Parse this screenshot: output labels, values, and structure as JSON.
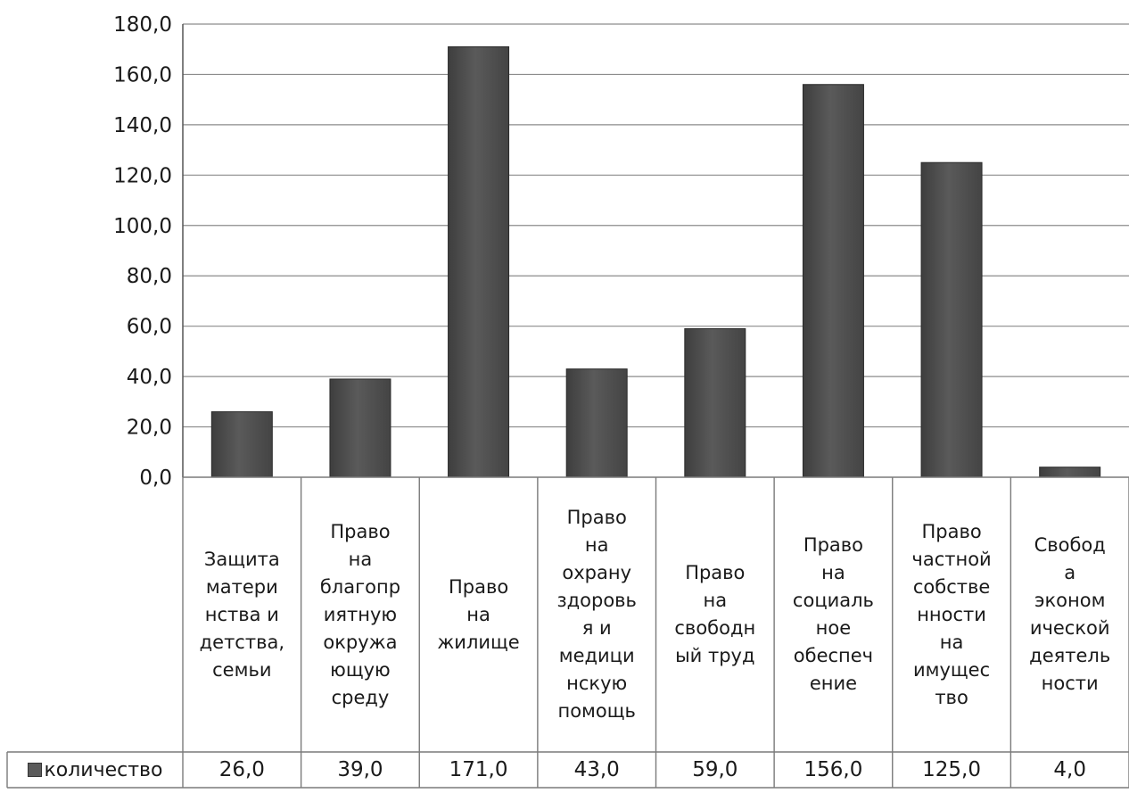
{
  "chart_data": {
    "type": "bar",
    "categories": [
      "Защита\nматери\nнства и\nдетства,\nсемьи",
      "Право\nна\nблагопр\nиятную\nокружа\nющую\nсреду",
      "Право\nна\nжилище",
      "Право\nна\nохрану\nздоровь\nя и\nмедици\nнскую\nпомощь",
      "Право\nна\nсвободн\nый труд",
      "Право\nна\nсоциаль\nное\nобеспеч\nение",
      "Право\nчастной\nсобстве\nнности\nна\nимущес\nтво",
      "Свобод\nа\nэконом\nической\nдеятель\nности"
    ],
    "series": [
      {
        "name": "количество",
        "values": [
          26.0,
          39.0,
          171.0,
          43.0,
          59.0,
          156.0,
          125.0,
          4.0
        ],
        "value_labels": [
          "26,0",
          "39,0",
          "171,0",
          "43,0",
          "59,0",
          "156,0",
          "125,0",
          "4,0"
        ]
      }
    ],
    "yticks": [
      "0,0",
      "20,0",
      "40,0",
      "60,0",
      "80,0",
      "100,0",
      "120,0",
      "140,0",
      "160,0",
      "180,0"
    ],
    "ylim": [
      0,
      180
    ],
    "grid": true,
    "legend": "data-table-left",
    "bar_color": "#5a5a5a"
  }
}
